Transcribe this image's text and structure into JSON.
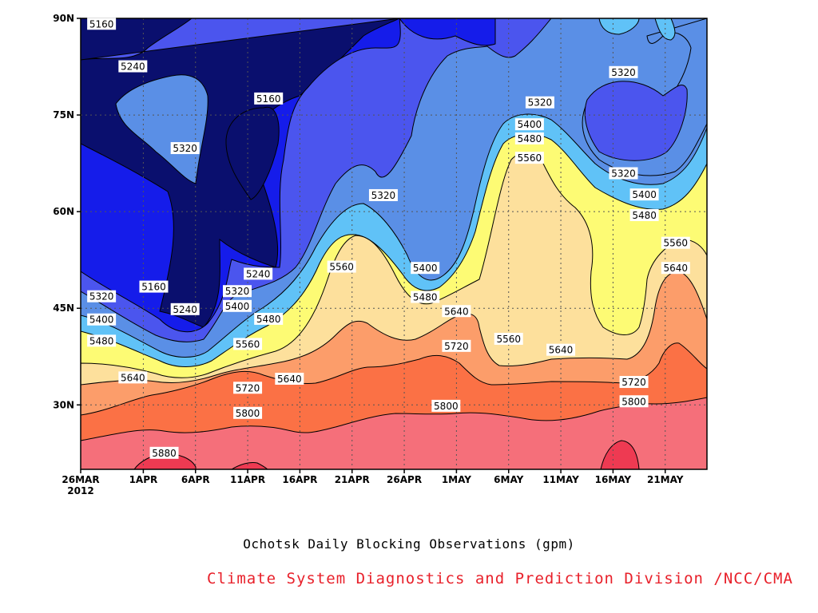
{
  "chart_data": {
    "type": "heatmap",
    "title": "Ochotsk Daily Blocking Observations (gpm)",
    "credit": "Climate System Diagnostics and Prediction Division /NCC/CMA",
    "xlabel": "",
    "ylabel": "",
    "x_ticks": [
      "26MAR",
      "1APR",
      "6APR",
      "11APR",
      "16APR",
      "21APR",
      "26APR",
      "1MAY",
      "6MAY",
      "11MAY",
      "16MAY",
      "21MAY"
    ],
    "x_year_label": "2012",
    "y_ticks": [
      "30N",
      "45N",
      "60N",
      "75N",
      "90N"
    ],
    "x_range": [
      "2012-03-26",
      "2012-05-25"
    ],
    "ylim_deg": [
      20,
      90
    ],
    "grid": true,
    "contour_levels": [
      5160,
      5240,
      5320,
      5400,
      5480,
      5560,
      5640,
      5720,
      5800,
      5880
    ],
    "level_colors": [
      "#0a0f6e",
      "#151cea",
      "#4b55ee",
      "#5a8fe6",
      "#60c2f7",
      "#fdfb74",
      "#fde09c",
      "#fc9d6a",
      "#fb7145",
      "#f56f7a",
      "#ee3a52"
    ],
    "contour_labels": [
      {
        "text": "5160",
        "date": "2012-03-28",
        "lat": 89.1
      },
      {
        "text": "5240",
        "date": "2012-03-31",
        "lat": 82.5
      },
      {
        "text": "5160",
        "date": "2012-04-13",
        "lat": 77.5
      },
      {
        "text": "5320",
        "date": "2012-04-05",
        "lat": 69.8
      },
      {
        "text": "5320",
        "date": "2012-04-24",
        "lat": 62.5
      },
      {
        "text": "5240",
        "date": "2012-04-12",
        "lat": 50.3
      },
      {
        "text": "5160",
        "date": "2012-04-02",
        "lat": 48.3
      },
      {
        "text": "5320",
        "date": "2012-04-10",
        "lat": 47.6
      },
      {
        "text": "5320",
        "date": "2012-03-28",
        "lat": 46.8
      },
      {
        "text": "5240",
        "date": "2012-04-05",
        "lat": 44.8
      },
      {
        "text": "5400",
        "date": "2012-04-10",
        "lat": 45.3
      },
      {
        "text": "5480",
        "date": "2012-04-13",
        "lat": 43.3
      },
      {
        "text": "5400",
        "date": "2012-03-28",
        "lat": 43.2
      },
      {
        "text": "5480",
        "date": "2012-03-28",
        "lat": 39.9
      },
      {
        "text": "5560",
        "date": "2012-04-11",
        "lat": 39.4
      },
      {
        "text": "5560",
        "date": "2012-04-20",
        "lat": 51.4
      },
      {
        "text": "5400",
        "date": "2012-04-28",
        "lat": 51.2
      },
      {
        "text": "5480",
        "date": "2012-04-28",
        "lat": 46.7
      },
      {
        "text": "5640",
        "date": "2012-05-01",
        "lat": 44.5
      },
      {
        "text": "5720",
        "date": "2012-05-01",
        "lat": 39.1
      },
      {
        "text": "5560",
        "date": "2012-05-06",
        "lat": 40.2
      },
      {
        "text": "5640",
        "date": "2012-05-11",
        "lat": 38.5
      },
      {
        "text": "5640",
        "date": "2012-03-31",
        "lat": 34.2
      },
      {
        "text": "5640",
        "date": "2012-04-15",
        "lat": 34.0
      },
      {
        "text": "5720",
        "date": "2012-04-11",
        "lat": 32.6
      },
      {
        "text": "5800",
        "date": "2012-04-11",
        "lat": 28.7
      },
      {
        "text": "5800",
        "date": "2012-04-30",
        "lat": 29.8
      },
      {
        "text": "5880",
        "date": "2012-04-03",
        "lat": 22.5
      },
      {
        "text": "5720",
        "date": "2012-05-18",
        "lat": 33.5
      },
      {
        "text": "5800",
        "date": "2012-05-18",
        "lat": 30.5
      },
      {
        "text": "5320",
        "date": "2012-05-09",
        "lat": 76.9
      },
      {
        "text": "5400",
        "date": "2012-05-08",
        "lat": 73.5
      },
      {
        "text": "5480",
        "date": "2012-05-08",
        "lat": 71.3
      },
      {
        "text": "5560",
        "date": "2012-05-08",
        "lat": 68.3
      },
      {
        "text": "5320",
        "date": "2012-05-17",
        "lat": 81.6
      },
      {
        "text": "5320",
        "date": "2012-05-17",
        "lat": 65.9
      },
      {
        "text": "5400",
        "date": "2012-05-19",
        "lat": 62.6
      },
      {
        "text": "5480",
        "date": "2012-05-19",
        "lat": 59.4
      },
      {
        "text": "5560",
        "date": "2012-05-22",
        "lat": 55.1
      },
      {
        "text": "5640",
        "date": "2012-05-22",
        "lat": 51.2
      }
    ]
  }
}
